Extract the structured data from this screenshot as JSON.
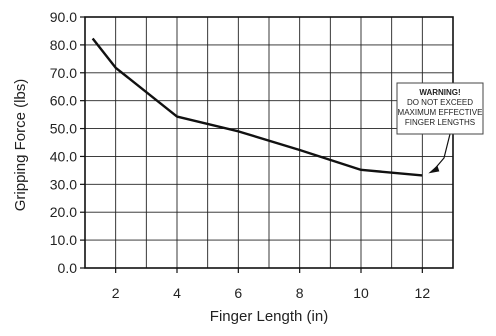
{
  "chart_data": {
    "type": "line",
    "title": "",
    "xlabel": "Finger Length (in)",
    "ylabel": "Gripping Force (lbs)",
    "xlim": [
      1,
      13
    ],
    "ylim": [
      0,
      90
    ],
    "x_ticks": [
      2,
      4,
      6,
      8,
      10,
      12
    ],
    "x_tick_labels": [
      "2",
      "4",
      "6",
      "8",
      "10",
      "12"
    ],
    "y_ticks": [
      0,
      10,
      20,
      30,
      40,
      50,
      60,
      70,
      80,
      90
    ],
    "y_tick_labels": [
      "0.0",
      "10.0",
      "20.0",
      "30.0",
      "40.0",
      "50.0",
      "60.0",
      "70.0",
      "80.0",
      "90.0"
    ],
    "grid": true,
    "series": [
      {
        "x": [
          1.25,
          2,
          4,
          6,
          8,
          10,
          12
        ],
        "y": [
          82.3,
          71.8,
          54.3,
          49.0,
          42.3,
          35.2,
          33.2
        ]
      }
    ],
    "annotation": {
      "title": "WARNING!",
      "lines": [
        "DO NOT EXCEED",
        "MAXIMUM EFFECTIVE",
        "FINGER LENGTHS"
      ],
      "target_x": 12,
      "target_y": 33.2
    }
  },
  "colors": {
    "line": "#111111",
    "grid": "#222222",
    "frame": "#111111",
    "note_fill": "#ffffff",
    "note_border": "#444444"
  }
}
